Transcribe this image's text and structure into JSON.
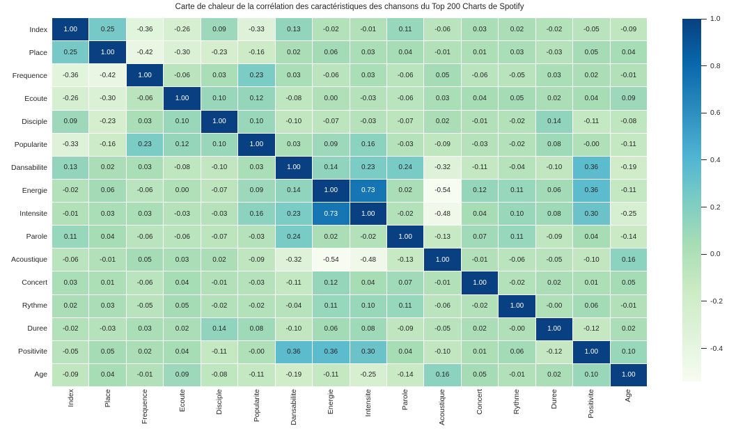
{
  "title": "Carte de chaleur de la corrélation des caractéristiques des chansons du Top 200 Charts de Spotify",
  "chart_data": {
    "type": "heatmap",
    "title": "Carte de chaleur de la corrélation des caractéristiques des chansons du Top 200 Charts de Spotify",
    "categories": [
      "Index",
      "Place",
      "Frequence",
      "Ecoute",
      "Disciple",
      "Popularite",
      "Dansabilite",
      "Energie",
      "Intensite",
      "Parole",
      "Acoustique",
      "Concert",
      "Rythme",
      "Duree",
      "Positivite",
      "Age"
    ],
    "matrix": [
      [
        "1.00",
        "0.25",
        "-0.36",
        "-0.26",
        "0.09",
        "-0.33",
        "0.13",
        "-0.02",
        "-0.01",
        "0.11",
        "-0.06",
        "0.03",
        "0.02",
        "-0.02",
        "-0.05",
        "-0.09"
      ],
      [
        "0.25",
        "1.00",
        "-0.42",
        "-0.30",
        "-0.23",
        "-0.16",
        "0.02",
        "0.06",
        "0.03",
        "0.04",
        "-0.01",
        "0.01",
        "0.03",
        "-0.03",
        "0.05",
        "0.04"
      ],
      [
        "-0.36",
        "-0.42",
        "1.00",
        "-0.06",
        "0.03",
        "0.23",
        "0.03",
        "-0.06",
        "0.03",
        "-0.06",
        "0.05",
        "-0.06",
        "-0.05",
        "0.03",
        "0.02",
        "-0.01"
      ],
      [
        "-0.26",
        "-0.30",
        "-0.06",
        "1.00",
        "0.10",
        "0.12",
        "-0.08",
        "0.00",
        "-0.03",
        "-0.06",
        "0.03",
        "0.04",
        "0.05",
        "0.02",
        "0.04",
        "0.09"
      ],
      [
        "0.09",
        "-0.23",
        "0.03",
        "0.10",
        "1.00",
        "0.10",
        "-0.10",
        "-0.07",
        "-0.03",
        "-0.07",
        "0.02",
        "-0.01",
        "-0.02",
        "0.14",
        "-0.11",
        "-0.08"
      ],
      [
        "-0.33",
        "-0.16",
        "0.23",
        "0.12",
        "0.10",
        "1.00",
        "0.03",
        "0.09",
        "0.16",
        "-0.03",
        "-0.09",
        "-0.03",
        "-0.02",
        "0.08",
        "-0.00",
        "-0.11"
      ],
      [
        "0.13",
        "0.02",
        "0.03",
        "-0.08",
        "-0.10",
        "0.03",
        "1.00",
        "0.14",
        "0.23",
        "0.24",
        "-0.32",
        "-0.11",
        "-0.04",
        "-0.10",
        "0.36",
        "-0.19"
      ],
      [
        "-0.02",
        "0.06",
        "-0.06",
        "0.00",
        "-0.07",
        "0.09",
        "0.14",
        "1.00",
        "0.73",
        "0.02",
        "-0.54",
        "0.12",
        "0.11",
        "0.06",
        "0.36",
        "-0.11"
      ],
      [
        "-0.01",
        "0.03",
        "0.03",
        "-0.03",
        "-0.03",
        "0.16",
        "0.23",
        "0.73",
        "1.00",
        "-0.02",
        "-0.48",
        "0.04",
        "0.10",
        "0.08",
        "0.30",
        "-0.25"
      ],
      [
        "0.11",
        "0.04",
        "-0.06",
        "-0.06",
        "-0.07",
        "-0.03",
        "0.24",
        "0.02",
        "-0.02",
        "1.00",
        "-0.13",
        "0.07",
        "0.11",
        "-0.09",
        "0.04",
        "-0.14"
      ],
      [
        "-0.06",
        "-0.01",
        "0.05",
        "0.03",
        "0.02",
        "-0.09",
        "-0.32",
        "-0.54",
        "-0.48",
        "-0.13",
        "1.00",
        "-0.01",
        "-0.06",
        "-0.05",
        "-0.10",
        "0.16"
      ],
      [
        "0.03",
        "0.01",
        "-0.06",
        "0.04",
        "-0.01",
        "-0.03",
        "-0.11",
        "0.12",
        "0.04",
        "0.07",
        "-0.01",
        "1.00",
        "-0.02",
        "0.02",
        "0.01",
        "0.05"
      ],
      [
        "0.02",
        "0.03",
        "-0.05",
        "0.05",
        "-0.02",
        "-0.02",
        "-0.04",
        "0.11",
        "0.10",
        "0.11",
        "-0.06",
        "-0.02",
        "1.00",
        "-0.00",
        "0.06",
        "-0.01"
      ],
      [
        "-0.02",
        "-0.03",
        "0.03",
        "0.02",
        "0.14",
        "0.08",
        "-0.10",
        "0.06",
        "0.08",
        "-0.09",
        "-0.05",
        "0.02",
        "-0.00",
        "1.00",
        "-0.12",
        "0.02"
      ],
      [
        "-0.05",
        "0.05",
        "0.02",
        "0.04",
        "-0.11",
        "-0.00",
        "0.36",
        "0.36",
        "0.30",
        "0.04",
        "-0.10",
        "0.01",
        "0.06",
        "-0.12",
        "1.00",
        "0.10"
      ],
      [
        "-0.09",
        "0.04",
        "-0.01",
        "0.09",
        "-0.08",
        "-0.11",
        "-0.19",
        "-0.11",
        "-0.25",
        "-0.14",
        "0.16",
        "0.05",
        "-0.01",
        "0.02",
        "0.10",
        "1.00"
      ]
    ],
    "vmin": -0.54,
    "vmax": 1.0,
    "colormap_name": "GnBu",
    "colormap_stops": [
      [
        0.0,
        "#f7fcf0"
      ],
      [
        0.125,
        "#e0f3db"
      ],
      [
        0.25,
        "#ccebc5"
      ],
      [
        0.375,
        "#a8ddb5"
      ],
      [
        0.5,
        "#7bccc4"
      ],
      [
        0.625,
        "#4eb3d3"
      ],
      [
        0.75,
        "#2b8cbe"
      ],
      [
        0.875,
        "#0868ac"
      ],
      [
        1.0,
        "#084081"
      ]
    ],
    "colorbar_tick_labels": [
      "1.0",
      "0.8",
      "0.6",
      "0.4",
      "0.2",
      "0.0",
      "-0.2",
      "-0.4"
    ],
    "colorbar_tick_values": [
      1.0,
      0.8,
      0.6,
      0.4,
      0.2,
      0.0,
      -0.2,
      -0.4
    ],
    "annotation_text_dark": "#262626",
    "annotation_text_light": "#ffffff",
    "legend_position": "right",
    "grid": false
  }
}
